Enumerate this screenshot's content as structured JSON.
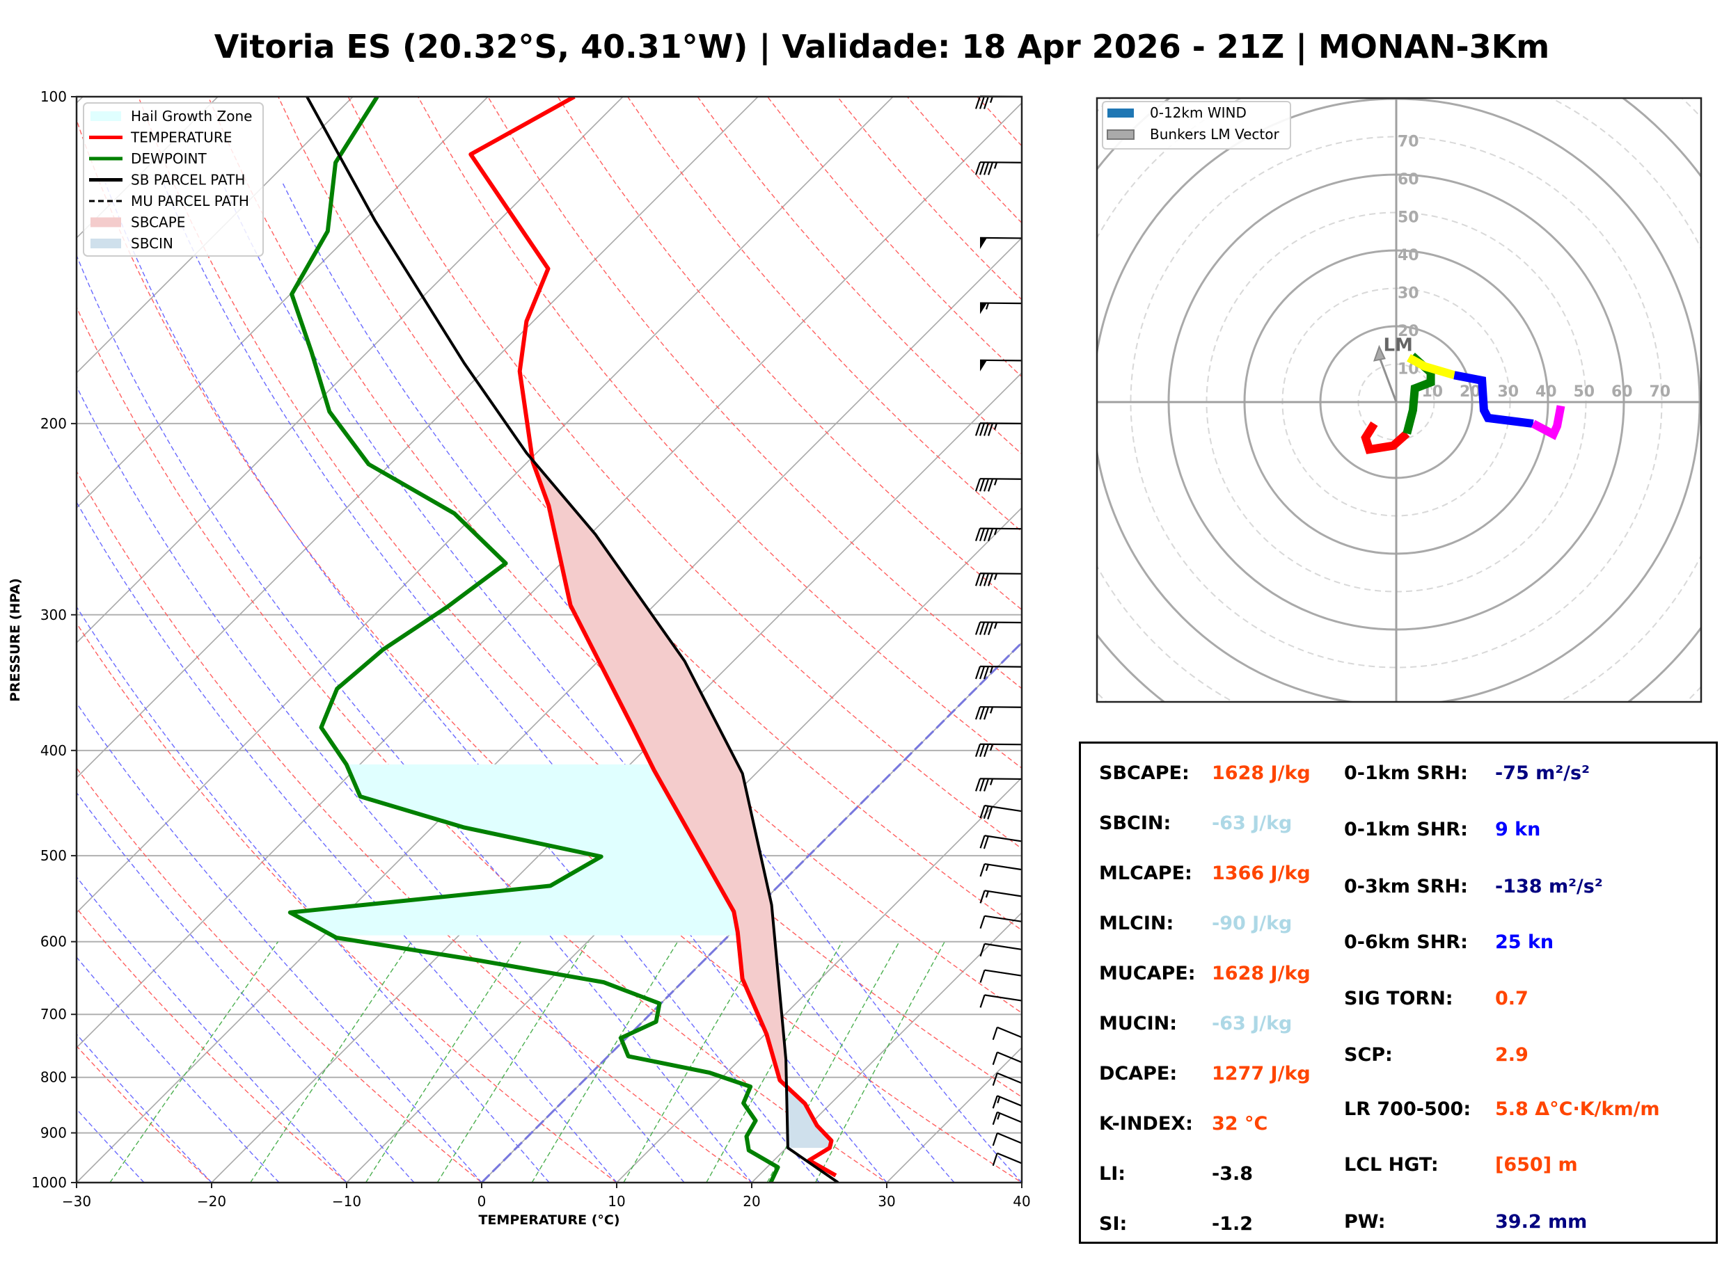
{
  "title": "Vitoria ES (20.32°S, 40.31°W) | Validade: 18 Apr 2026 - 21Z | MONAN-3Km",
  "chart_data": [
    {
      "type": "line",
      "name": "skew-t",
      "xlabel": "TEMPERATURE (°C)",
      "ylabel": "PRESSURE (HPA)",
      "xlim": [
        -30,
        40
      ],
      "ylim": [
        1000,
        100
      ],
      "xticks": [
        "−30",
        "−20",
        "−10",
        "0",
        "10",
        "20",
        "30",
        "40"
      ],
      "xtick_values": [
        -30,
        -20,
        -10,
        0,
        10,
        20,
        30,
        40
      ],
      "yticks": [
        "100",
        "200",
        "300",
        "400",
        "500",
        "600",
        "700",
        "800",
        "900",
        "1000"
      ],
      "ytick_values": [
        100,
        200,
        300,
        400,
        500,
        600,
        700,
        800,
        900,
        1000
      ],
      "legend": {
        "placement": "top-left",
        "entries": [
          {
            "label": "Hail Growth Zone",
            "color": "#e0ffff",
            "kind": "patch"
          },
          {
            "label": "TEMPERATURE",
            "color": "#ff0000",
            "kind": "line"
          },
          {
            "label": "DEWPOINT",
            "color": "#008000",
            "kind": "line"
          },
          {
            "label": "SB PARCEL PATH",
            "color": "#000000",
            "kind": "line"
          },
          {
            "label": "MU PARCEL PATH",
            "color": "#000000",
            "kind": "dashed"
          },
          {
            "label": "SBCAPE",
            "color": "#f4cccc",
            "kind": "patch"
          },
          {
            "label": "SBCIN",
            "color": "#cfe0ec",
            "kind": "patch"
          }
        ]
      },
      "series": [
        {
          "name": "TEMPERATURE",
          "color": "#ff0000",
          "points": [
            [
              985,
              25.7
            ],
            [
              954,
              22.6
            ],
            [
              929,
              23.2
            ],
            [
              915,
              22.8
            ],
            [
              886,
              20.6
            ],
            [
              846,
              18.1
            ],
            [
              805,
              14.5
            ],
            [
              730,
              10.1
            ],
            [
              649,
              4.2
            ],
            [
              588,
              0.4
            ],
            [
              563,
              -1.4
            ],
            [
              417,
              -17.8
            ],
            [
              379,
              -22.8
            ],
            [
              294,
              -36.2
            ],
            [
              238,
              -45.2
            ],
            [
              217,
              -49.6
            ],
            [
              179,
              -57.3
            ],
            [
              161,
              -60.5
            ],
            [
              144,
              -62.8
            ],
            [
              113,
              -77.0
            ],
            [
              100,
              -73.6
            ]
          ]
        },
        {
          "name": "DEWPOINT",
          "color": "#008000",
          "points": [
            [
              1000,
              21.4
            ],
            [
              968,
              20.8
            ],
            [
              934,
              17.4
            ],
            [
              907,
              16.2
            ],
            [
              877,
              15.7
            ],
            [
              845,
              13.5
            ],
            [
              816,
              12.8
            ],
            [
              792,
              8.7
            ],
            [
              765,
              1.5
            ],
            [
              736,
              -0.4
            ],
            [
              711,
              1.0
            ],
            [
              684,
              -0.1
            ],
            [
              654,
              -5.8
            ],
            [
              624,
              -16.8
            ],
            [
              595,
              -28.9
            ],
            [
              564,
              -34.2
            ],
            [
              533,
              -16.9
            ],
            [
              501,
              -15.3
            ],
            [
              471,
              -27.6
            ],
            [
              441,
              -37.6
            ],
            [
              412,
              -41.0
            ],
            [
              381,
              -45.6
            ],
            [
              351,
              -47.3
            ],
            [
              323,
              -46.8
            ],
            [
              295,
              -45.2
            ],
            [
              269,
              -44.1
            ],
            [
              242,
              -51.6
            ],
            [
              218,
              -61.6
            ],
            [
              195,
              -68.4
            ],
            [
              172,
              -74.1
            ],
            [
              152,
              -79.9
            ],
            [
              133,
              -81.9
            ],
            [
              115,
              -86.4
            ],
            [
              100,
              -88.2
            ]
          ]
        },
        {
          "name": "SB PARCEL PATH",
          "color": "#000000",
          "points": [
            [
              1000,
              26.4
            ],
            [
              929,
              20.1
            ],
            [
              770,
              13.4
            ],
            [
              555,
              0.9
            ],
            [
              420,
              -11.0
            ],
            [
              331,
              -23.6
            ],
            [
              253,
              -39.6
            ],
            [
              213,
              -50.7
            ],
            [
              176,
              -62.0
            ],
            [
              130,
              -79.2
            ],
            [
              100,
              -93.4
            ]
          ]
        }
      ],
      "shaded_regions": [
        {
          "name": "Hail Growth Zone",
          "color": "#e0ffff",
          "p_top": 411,
          "p_bottom": 592
        },
        {
          "name": "SBCAPE",
          "color": "#f4cccc",
          "p_from": 805,
          "p_to": 220
        },
        {
          "name": "SBCIN",
          "color": "#cfe0ec",
          "p_from": 929,
          "p_to": 805
        }
      ],
      "wind_barbs": [
        {
          "p": 100,
          "speed_kn": 35
        },
        {
          "p": 115,
          "speed_kn": 45
        },
        {
          "p": 135,
          "speed_kn": 50
        },
        {
          "p": 155,
          "speed_kn": 55
        },
        {
          "p": 175,
          "speed_kn": 50
        },
        {
          "p": 200,
          "speed_kn": 45
        },
        {
          "p": 225,
          "speed_kn": 45
        },
        {
          "p": 250,
          "speed_kn": 45
        },
        {
          "p": 275,
          "speed_kn": 45
        },
        {
          "p": 305,
          "speed_kn": 45
        },
        {
          "p": 335,
          "speed_kn": 35
        },
        {
          "p": 365,
          "speed_kn": 35
        },
        {
          "p": 395,
          "speed_kn": 35
        },
        {
          "p": 425,
          "speed_kn": 35
        },
        {
          "p": 455,
          "speed_kn": 30
        },
        {
          "p": 485,
          "speed_kn": 20
        },
        {
          "p": 515,
          "speed_kn": 15
        },
        {
          "p": 545,
          "speed_kn": 15
        },
        {
          "p": 575,
          "speed_kn": 10
        },
        {
          "p": 610,
          "speed_kn": 10
        },
        {
          "p": 645,
          "speed_kn": 10
        },
        {
          "p": 680,
          "speed_kn": 10
        },
        {
          "p": 735,
          "speed_kn": 10
        },
        {
          "p": 775,
          "speed_kn": 10
        },
        {
          "p": 810,
          "speed_kn": 10
        },
        {
          "p": 850,
          "speed_kn": 15
        },
        {
          "p": 880,
          "speed_kn": 15
        },
        {
          "p": 920,
          "speed_kn": 10
        },
        {
          "p": 960,
          "speed_kn": 10
        }
      ]
    },
    {
      "type": "line",
      "name": "hodograph",
      "legend": {
        "placement": "top-left",
        "entries": [
          {
            "label": "0-12km WIND",
            "color": "#1f77b4"
          },
          {
            "label": "Bunkers LM Vector",
            "color": "#aaaaaa"
          }
        ]
      },
      "ring_labels": [
        "10",
        "20",
        "30",
        "40",
        "50",
        "60",
        "70"
      ],
      "ring_values": [
        10,
        20,
        30,
        40,
        50,
        60,
        70
      ],
      "range_kn": 80,
      "lm_label": "LM",
      "lm_vector": [
        -4.5,
        14.6
      ],
      "segments": [
        {
          "color": "#ff0000",
          "points": [
            [
              -5.8,
              -5.7
            ],
            [
              -8.1,
              -9.4
            ],
            [
              -7.1,
              -12.5
            ],
            [
              -0.8,
              -11.5
            ],
            [
              2.8,
              -8.3
            ]
          ]
        },
        {
          "color": "#008000",
          "points": [
            [
              2.8,
              -8.3
            ],
            [
              4.4,
              -2.1
            ],
            [
              4.9,
              3.6
            ],
            [
              9.1,
              5.2
            ],
            [
              9.1,
              7.8
            ],
            [
              4.2,
              12.2
            ]
          ]
        },
        {
          "color": "#ffff00",
          "points": [
            [
              3.3,
              11.7
            ],
            [
              7.5,
              9.4
            ],
            [
              15.3,
              7.1
            ]
          ]
        },
        {
          "color": "#0000ff",
          "points": [
            [
              15.3,
              7.1
            ],
            [
              22.6,
              5.7
            ],
            [
              23.1,
              -2.1
            ],
            [
              24.2,
              -4.2
            ],
            [
              36.1,
              -5.7
            ]
          ]
        },
        {
          "color": "#ff00ff",
          "points": [
            [
              36.1,
              -5.7
            ],
            [
              41.4,
              -8.5
            ],
            [
              42.4,
              -6.3
            ],
            [
              43.4,
              -1.0
            ]
          ]
        }
      ]
    }
  ],
  "stats": {
    "left": [
      {
        "label": "SBCAPE:",
        "value": "1628 J/kg",
        "color": "#ff4500"
      },
      {
        "label": "SBCIN:",
        "value": "-63 J/kg",
        "color": "#add8e6"
      },
      {
        "label": "MLCAPE:",
        "value": "1366 J/kg",
        "color": "#ff4500"
      },
      {
        "label": "MLCIN:",
        "value": "-90 J/kg",
        "color": "#add8e6"
      },
      {
        "label": "MUCAPE:",
        "value": "1628 J/kg",
        "color": "#ff4500"
      },
      {
        "label": "MUCIN:",
        "value": "-63 J/kg",
        "color": "#add8e6"
      },
      {
        "label": "DCAPE:",
        "value": "1277 J/kg",
        "color": "#ff4500"
      },
      {
        "label": "K-INDEX:",
        "value": "32 °C",
        "color": "#ff4500"
      },
      {
        "label": "LI:",
        "value": "-3.8",
        "color": "#000000"
      },
      {
        "label": "SI:",
        "value": "-1.2",
        "color": "#000000"
      }
    ],
    "right": [
      {
        "label": "0-1km SRH:",
        "value": "-75 m²/s²",
        "color": "#000080"
      },
      {
        "label": "0-1km SHR:",
        "value": "9 kn",
        "color": "#0000ff"
      },
      {
        "label": "0-3km SRH:",
        "value": "-138 m²/s²",
        "color": "#000080"
      },
      {
        "label": "0-6km SHR:",
        "value": "25 kn",
        "color": "#0000ff"
      },
      {
        "label": "SIG TORN:",
        "value": "0.7",
        "color": "#ff4500"
      },
      {
        "label": "SCP:",
        "value": "2.9",
        "color": "#ff4500"
      },
      {
        "label": "LR 700-500:",
        "value": "5.8 Δ°C·K/km/m",
        "color": "#ff4500"
      },
      {
        "label": "LCL HGT:",
        "value": "[650] m",
        "color": "#ff4500"
      },
      {
        "label": "PW:",
        "value": "39.2 mm",
        "color": "#000080"
      }
    ]
  }
}
